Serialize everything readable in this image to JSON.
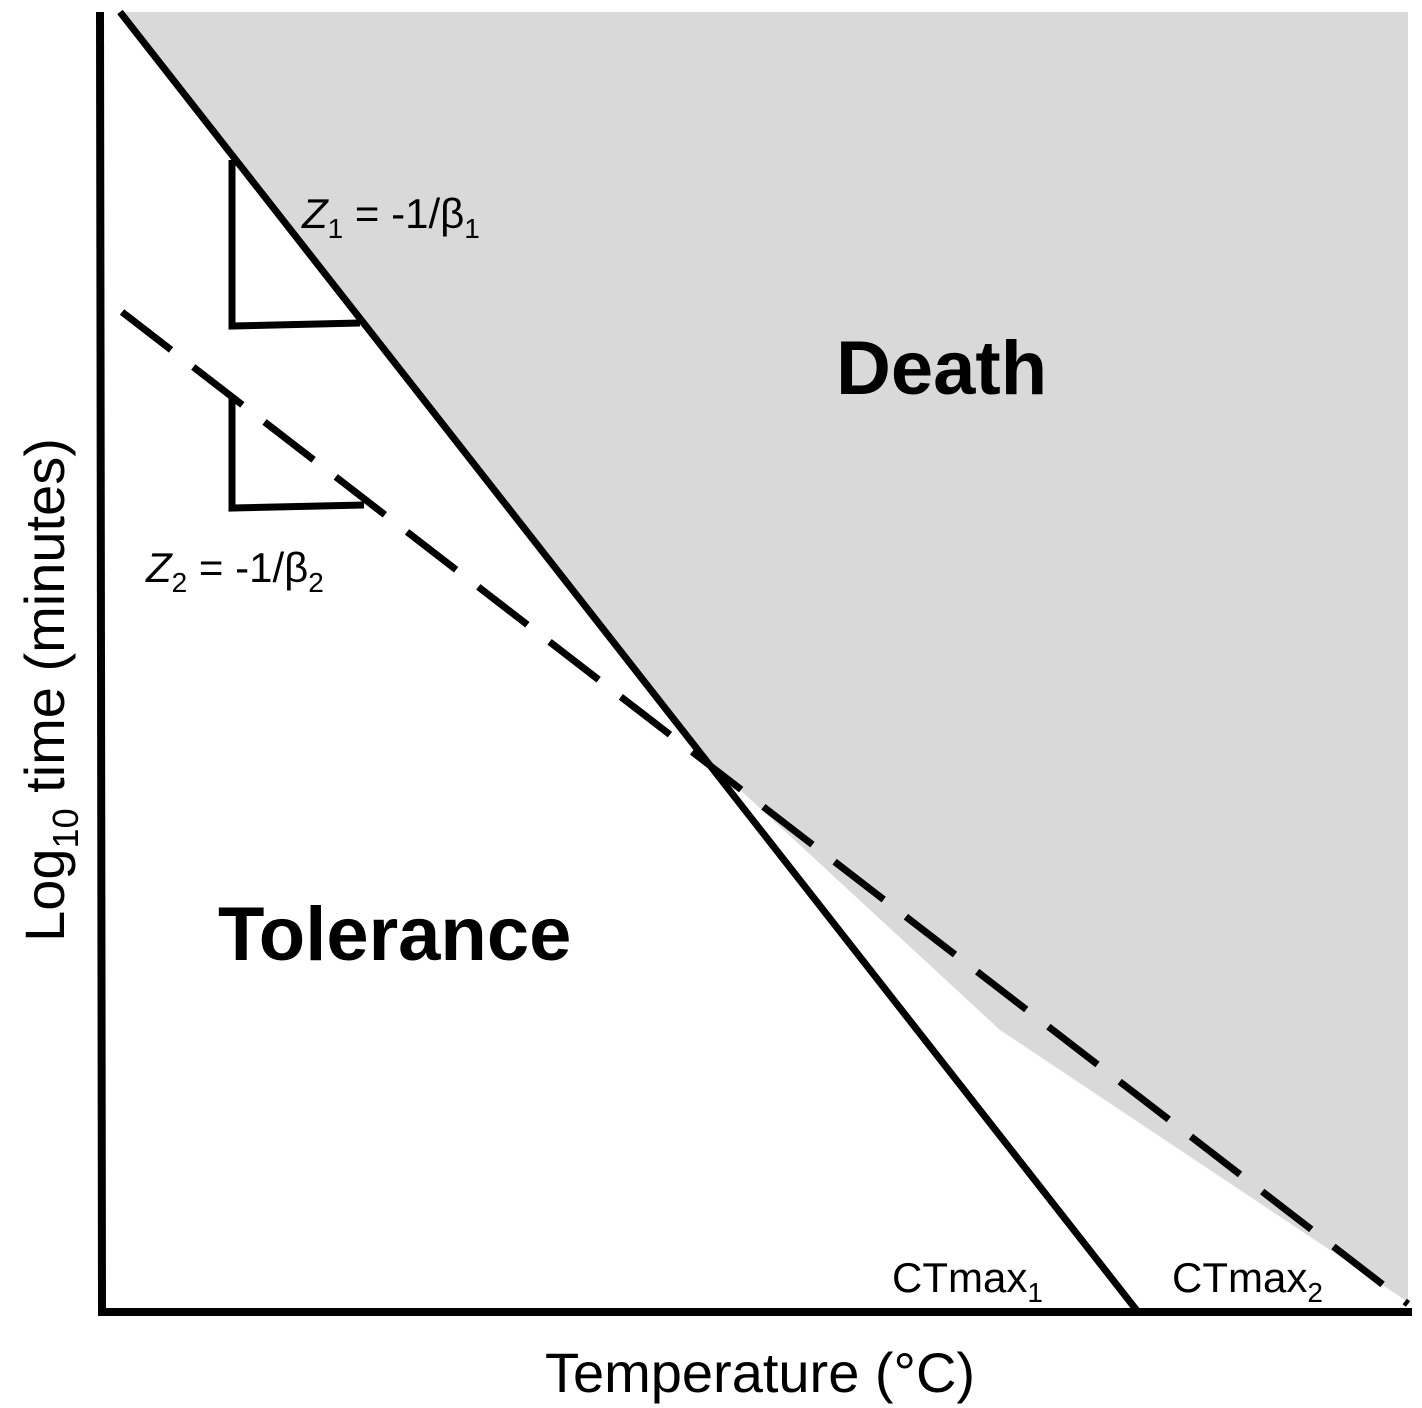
{
  "colors": {
    "death_fill": "#d9d9d9",
    "line": "#000000",
    "background": "#ffffff"
  },
  "regions": {
    "death_label": "Death",
    "tolerance_label": "Tolerance"
  },
  "axes": {
    "x_label": "Temperature (°C)",
    "y_label_main": "Log",
    "y_label_sub": "10",
    "y_label_rest": " time (minutes)"
  },
  "annotations": {
    "z1": {
      "symbol": "Z",
      "symbol_sub": "1",
      "equals": " = -1/β",
      "beta_sub": "1"
    },
    "z2": {
      "symbol": "Z",
      "symbol_sub": "2",
      "equals": " = -1/β",
      "beta_sub": "2"
    },
    "ctmax1": {
      "text": "CTmax",
      "sub": "1"
    },
    "ctmax2": {
      "text": "CTmax",
      "sub": "2"
    }
  },
  "lines": {
    "line1_style": "solid",
    "line2_style": "dashed"
  }
}
